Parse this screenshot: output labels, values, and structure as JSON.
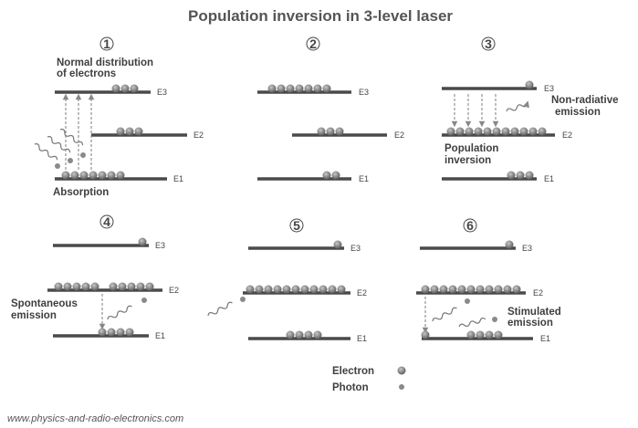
{
  "title": "Population inversion in 3-level laser",
  "panels": [
    {
      "num": "1",
      "level_labels": {
        "e3": "E3",
        "e2": "E2",
        "e1": "E1"
      },
      "top_note": [
        "Normal distribution",
        "of electrons"
      ],
      "bottom_note": "Absorption"
    },
    {
      "num": "2",
      "level_labels": {
        "e3": "E3",
        "e2": "E2",
        "e1": "E1"
      }
    },
    {
      "num": "3",
      "level_labels": {
        "e3": "E3",
        "e2": "E2",
        "e1": "E1"
      },
      "side_note": [
        "Non-radiative",
        "emission"
      ],
      "mid_note": [
        "Population",
        "inversion"
      ]
    },
    {
      "num": "4",
      "level_labels": {
        "e3": "E3",
        "e2": "E2",
        "e1": "E1"
      },
      "side_note": [
        "Spontaneous",
        "emission"
      ]
    },
    {
      "num": "5",
      "level_labels": {
        "e3": "E3",
        "e2": "E2",
        "e1": "E1"
      }
    },
    {
      "num": "6",
      "level_labels": {
        "e3": "E3",
        "e2": "E2",
        "e1": "E1"
      },
      "side_note": [
        "Stimulated",
        "emission"
      ]
    }
  ],
  "legend": {
    "electron": "Electron",
    "photon": "Photon"
  },
  "source": "www.physics-and-radio-electronics.com",
  "colors": {
    "electron": "#7a7a7a",
    "photon": "#8a8a8a",
    "line": "#4a4a4a"
  }
}
